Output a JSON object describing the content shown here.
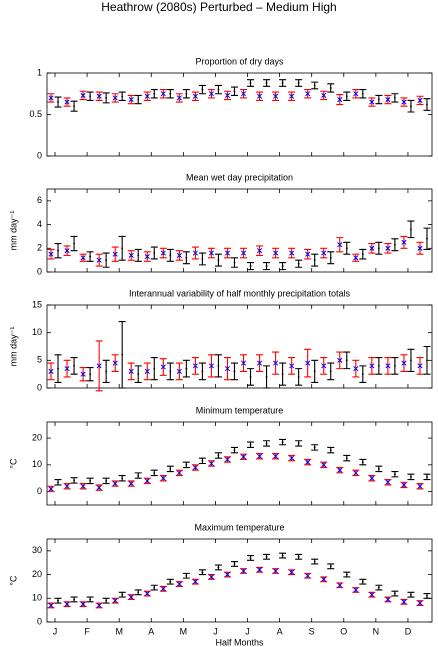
{
  "title": "Heathrow (2080s) Perturbed – Medium High",
  "chart_data": [
    {
      "type": "errorbar",
      "title": "Proportion of dry days",
      "ylim": [
        0,
        1
      ],
      "yticks": [
        0,
        0.5,
        1
      ],
      "series": [
        {
          "color": "#000000",
          "values": [
            0.65,
            0.6,
            0.72,
            0.7,
            0.72,
            0.68,
            0.75,
            0.75,
            0.75,
            0.8,
            0.8,
            0.78,
            0.88,
            0.88,
            0.88,
            0.88,
            0.85,
            0.82,
            0.72,
            0.75,
            0.68,
            0.7,
            0.6,
            0.62
          ],
          "errors": [
            0.06,
            0.06,
            0.05,
            0.06,
            0.05,
            0.05,
            0.05,
            0.05,
            0.05,
            0.05,
            0.05,
            0.05,
            0.04,
            0.04,
            0.04,
            0.04,
            0.04,
            0.05,
            0.05,
            0.05,
            0.05,
            0.05,
            0.07,
            0.07
          ]
        },
        {
          "color": "#ff0000",
          "marker_color": "#0000ff",
          "values": [
            0.7,
            0.65,
            0.73,
            0.72,
            0.7,
            0.68,
            0.72,
            0.75,
            0.7,
            0.72,
            0.75,
            0.73,
            0.75,
            0.72,
            0.72,
            0.72,
            0.75,
            0.73,
            0.68,
            0.75,
            0.65,
            0.68,
            0.65,
            0.67
          ],
          "errors": [
            0.05,
            0.05,
            0.05,
            0.05,
            0.05,
            0.05,
            0.05,
            0.05,
            0.05,
            0.05,
            0.05,
            0.05,
            0.05,
            0.05,
            0.05,
            0.05,
            0.05,
            0.05,
            0.06,
            0.05,
            0.05,
            0.05,
            0.05,
            0.05
          ]
        }
      ]
    },
    {
      "type": "errorbar",
      "title": "Mean wet day precipitation",
      "ylabel": "mm day⁻¹",
      "ylim": [
        0,
        7
      ],
      "yticks": [
        0,
        2,
        4,
        6
      ],
      "series": [
        {
          "color": "#000000",
          "values": [
            1.8,
            2.4,
            1.3,
            1,
            2,
            1.4,
            1.6,
            1.4,
            1.2,
            1.1,
            1,
            0.8,
            0.5,
            0.5,
            0.5,
            0.7,
            1,
            1.2,
            2,
            1.5,
            2,
            2.3,
            3.6,
            2.8
          ],
          "errors": [
            0.6,
            0.6,
            0.4,
            0.6,
            1,
            0.5,
            0.5,
            0.5,
            0.5,
            0.5,
            0.5,
            0.4,
            0.3,
            0.3,
            0.3,
            0.3,
            0.5,
            0.5,
            0.5,
            0.4,
            0.5,
            0.5,
            0.7,
            0.9
          ]
        },
        {
          "color": "#ff0000",
          "marker_color": "#0000ff",
          "values": [
            1.5,
            1.8,
            1.2,
            1,
            1.5,
            1.4,
            1.3,
            1.6,
            1.4,
            1.6,
            1.6,
            1.6,
            1.6,
            1.8,
            1.6,
            1.6,
            1.5,
            1.6,
            2.3,
            1.2,
            2,
            2,
            2.5,
            2
          ],
          "errors": [
            0.4,
            0.4,
            0.3,
            0.5,
            0.6,
            0.4,
            0.4,
            0.4,
            0.4,
            0.5,
            0.4,
            0.4,
            0.4,
            0.4,
            0.4,
            0.4,
            0.4,
            0.4,
            0.6,
            0.3,
            0.4,
            0.4,
            0.5,
            0.5
          ]
        }
      ]
    },
    {
      "type": "errorbar",
      "title": "Interannual variability of half monthly precipitation totals",
      "ylabel": "mm day⁻¹",
      "ylim": [
        0,
        15
      ],
      "yticks": [
        0,
        5,
        10,
        15
      ],
      "series": [
        {
          "color": "#000000",
          "values": [
            3.5,
            4,
            2.5,
            3,
            6,
            2.5,
            3.5,
            3,
            3.5,
            3,
            4,
            3,
            2,
            2,
            2.5,
            2,
            3,
            3,
            5,
            2.5,
            4,
            4,
            5,
            5
          ],
          "errors": [
            2.5,
            1.5,
            1.2,
            2,
            6,
            1.5,
            2,
            1.5,
            1.5,
            1.5,
            2,
            1.5,
            1.5,
            2,
            2,
            1.5,
            2,
            1.5,
            1.5,
            1.5,
            1.5,
            1.5,
            2,
            2.5
          ]
        },
        {
          "color": "#ff0000",
          "marker_color": "#0000ff",
          "values": [
            3,
            3.5,
            2.5,
            4,
            4.5,
            3,
            3,
            3.8,
            3,
            4,
            4,
            3.5,
            4.5,
            4.5,
            4.5,
            4,
            4.5,
            4,
            5,
            3.5,
            4,
            4,
            4.5,
            4
          ],
          "errors": [
            1.5,
            1.5,
            1.2,
            4.5,
            1.5,
            1.5,
            1.5,
            1.5,
            1.5,
            1.5,
            2,
            2,
            1.5,
            1.5,
            2,
            1.5,
            2.5,
            1.5,
            1.5,
            1.5,
            1.5,
            1.5,
            1.5,
            1.5
          ]
        }
      ]
    },
    {
      "type": "errorbar",
      "title": "Minimum temperature",
      "ylabel": "°C",
      "ylim": [
        -5,
        26
      ],
      "yticks": [
        0,
        10,
        20
      ],
      "series": [
        {
          "color": "#000000",
          "values": [
            3.5,
            4.2,
            4,
            4,
            5,
            6,
            7,
            8.5,
            10,
            11.5,
            13.5,
            15.5,
            17.5,
            18,
            18.5,
            18,
            16.5,
            15.5,
            12.5,
            11,
            8.5,
            6.5,
            5.5,
            5.5
          ],
          "errors": [
            1,
            1,
            1,
            1,
            1,
            1,
            1,
            1,
            1,
            1,
            1,
            1,
            1,
            1,
            1,
            1,
            1,
            1,
            1,
            1,
            1,
            1,
            1,
            1
          ]
        },
        {
          "color": "#ff0000",
          "marker_color": "#0000ff",
          "values": [
            1,
            2,
            2,
            1.5,
            3,
            3,
            4,
            5,
            7,
            9,
            10.5,
            12,
            13,
            13.2,
            13.2,
            12.5,
            11,
            10,
            8,
            7,
            5,
            3.5,
            2.5,
            2
          ],
          "errors": [
            1,
            1,
            1,
            1,
            1,
            1,
            1,
            1,
            1,
            1,
            1,
            1,
            1,
            1,
            1,
            1,
            1,
            1,
            1,
            1,
            1,
            1,
            1,
            1
          ]
        }
      ]
    },
    {
      "type": "errorbar",
      "title": "Maximum temperature",
      "ylabel": "°C",
      "xlabel": "Half Months",
      "ylim": [
        0,
        35
      ],
      "yticks": [
        0,
        10,
        20,
        30
      ],
      "categories": [
        "J",
        null,
        "F",
        null,
        "M",
        null,
        "A",
        null,
        "M",
        null,
        "J",
        null,
        "J",
        null,
        "A",
        null,
        "S",
        null,
        "O",
        null,
        "N",
        null,
        "D",
        null
      ],
      "series": [
        {
          "color": "#000000",
          "values": [
            9,
            9.5,
            9.5,
            9,
            11.5,
            12.5,
            14.5,
            17,
            19.5,
            21,
            23,
            24.5,
            27,
            27.5,
            28,
            27.5,
            25.5,
            23.5,
            20,
            17,
            14.5,
            12,
            11.5,
            11
          ],
          "errors": [
            1,
            1,
            1,
            1,
            1,
            1,
            1,
            1,
            1,
            1,
            1,
            1,
            1,
            1,
            1,
            1,
            1,
            1,
            1,
            1,
            1,
            1,
            1,
            1
          ]
        },
        {
          "color": "#ff0000",
          "marker_color": "#0000ff",
          "values": [
            7,
            7.5,
            7.5,
            7,
            9,
            10.5,
            12,
            14,
            16,
            17,
            19,
            20,
            21.5,
            22,
            21.5,
            21,
            19.5,
            18,
            15.5,
            13.5,
            11.5,
            9.5,
            8.5,
            8
          ],
          "errors": [
            1,
            1,
            1,
            1,
            1,
            1,
            1,
            1,
            1,
            1,
            1,
            1,
            1,
            1,
            1,
            1,
            1,
            1,
            1,
            1,
            1,
            1,
            1,
            1
          ]
        }
      ]
    }
  ]
}
